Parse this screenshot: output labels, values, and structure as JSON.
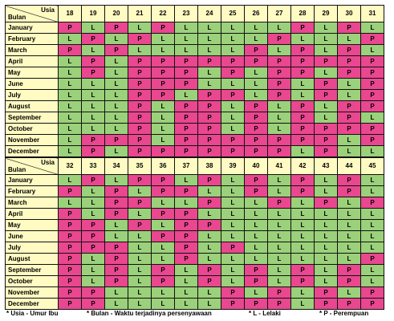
{
  "corner": {
    "age_label": "Usia",
    "month_label": "Bulan"
  },
  "months": [
    "January",
    "February",
    "March",
    "April",
    "May",
    "June",
    "July",
    "August",
    "September",
    "October",
    "November",
    "December"
  ],
  "tables": [
    {
      "ages": [
        "18",
        "19",
        "20",
        "21",
        "22",
        "23",
        "24",
        "25",
        "26",
        "27",
        "28",
        "29",
        "30",
        "31"
      ],
      "rows": [
        [
          "P",
          "L",
          "P",
          "L",
          "P",
          "L",
          "L",
          "L",
          "L",
          "L",
          "P",
          "L",
          "P",
          "L"
        ],
        [
          "L",
          "P",
          "L",
          "P",
          "L",
          "L",
          "L",
          "L",
          "L",
          "P",
          "L",
          "L",
          "L",
          "P"
        ],
        [
          "P",
          "L",
          "P",
          "L",
          "L",
          "L",
          "L",
          "L",
          "P",
          "L",
          "P",
          "L",
          "P",
          "L"
        ],
        [
          "L",
          "P",
          "L",
          "P",
          "P",
          "P",
          "P",
          "P",
          "P",
          "P",
          "P",
          "P",
          "P",
          "P"
        ],
        [
          "L",
          "P",
          "L",
          "P",
          "P",
          "P",
          "L",
          "P",
          "L",
          "P",
          "P",
          "L",
          "P",
          "P"
        ],
        [
          "L",
          "L",
          "L",
          "P",
          "P",
          "P",
          "L",
          "L",
          "L",
          "P",
          "L",
          "P",
          "L",
          "P"
        ],
        [
          "L",
          "L",
          "L",
          "P",
          "P",
          "L",
          "P",
          "P",
          "L",
          "P",
          "L",
          "P",
          "L",
          "P"
        ],
        [
          "L",
          "L",
          "L",
          "P",
          "L",
          "P",
          "P",
          "L",
          "P",
          "L",
          "P",
          "L",
          "P",
          "P"
        ],
        [
          "L",
          "L",
          "L",
          "P",
          "L",
          "P",
          "P",
          "L",
          "P",
          "L",
          "P",
          "L",
          "P",
          "L"
        ],
        [
          "L",
          "L",
          "L",
          "P",
          "L",
          "P",
          "P",
          "L",
          "P",
          "L",
          "P",
          "P",
          "P",
          "P"
        ],
        [
          "L",
          "P",
          "P",
          "P",
          "L",
          "P",
          "P",
          "P",
          "P",
          "P",
          "P",
          "P",
          "L",
          "P"
        ],
        [
          "L",
          "P",
          "L",
          "P",
          "P",
          "P",
          "P",
          "P",
          "P",
          "P",
          "L",
          "P",
          "L",
          "L"
        ]
      ]
    },
    {
      "ages": [
        "32",
        "33",
        "34",
        "35",
        "36",
        "37",
        "38",
        "39",
        "40",
        "41",
        "42",
        "43",
        "44",
        "45"
      ],
      "rows": [
        [
          "L",
          "P",
          "L",
          "P",
          "P",
          "L",
          "P",
          "L",
          "P",
          "L",
          "P",
          "L",
          "P",
          "L"
        ],
        [
          "P",
          "L",
          "P",
          "L",
          "P",
          "P",
          "L",
          "L",
          "P",
          "L",
          "P",
          "L",
          "P",
          "L"
        ],
        [
          "L",
          "L",
          "P",
          "P",
          "L",
          "L",
          "P",
          "L",
          "L",
          "P",
          "L",
          "P",
          "L",
          "P"
        ],
        [
          "P",
          "L",
          "P",
          "L",
          "P",
          "P",
          "L",
          "L",
          "L",
          "L",
          "L",
          "L",
          "L",
          "L"
        ],
        [
          "P",
          "P",
          "L",
          "P",
          "L",
          "P",
          "P",
          "L",
          "L",
          "L",
          "L",
          "L",
          "L",
          "L"
        ],
        [
          "P",
          "P",
          "L",
          "L",
          "P",
          "P",
          "L",
          "L",
          "L",
          "L",
          "L",
          "L",
          "L",
          "L"
        ],
        [
          "P",
          "P",
          "P",
          "L",
          "L",
          "P",
          "L",
          "P",
          "L",
          "L",
          "L",
          "L",
          "L",
          "L"
        ],
        [
          "P",
          "L",
          "P",
          "L",
          "L",
          "P",
          "L",
          "L",
          "L",
          "L",
          "L",
          "L",
          "L",
          "P"
        ],
        [
          "P",
          "L",
          "P",
          "L",
          "P",
          "L",
          "P",
          "L",
          "P",
          "L",
          "P",
          "L",
          "P",
          "L"
        ],
        [
          "P",
          "L",
          "P",
          "L",
          "P",
          "L",
          "P",
          "L",
          "P",
          "L",
          "P",
          "L",
          "P",
          "L"
        ],
        [
          "P",
          "P",
          "L",
          "L",
          "L",
          "L",
          "L",
          "P",
          "L",
          "P",
          "L",
          "P",
          "L",
          "P"
        ],
        [
          "P",
          "P",
          "L",
          "L",
          "L",
          "L",
          "L",
          "P",
          "P",
          "P",
          "L",
          "P",
          "P",
          "P"
        ]
      ]
    }
  ],
  "legend": [
    {
      "text": "* Usia - Umur Ibu"
    },
    {
      "text": "* Bulan - Waktu terjadinya persenyawaan"
    },
    {
      "text": "* L - Lelaki"
    },
    {
      "text": "* P - Perempuan"
    }
  ]
}
